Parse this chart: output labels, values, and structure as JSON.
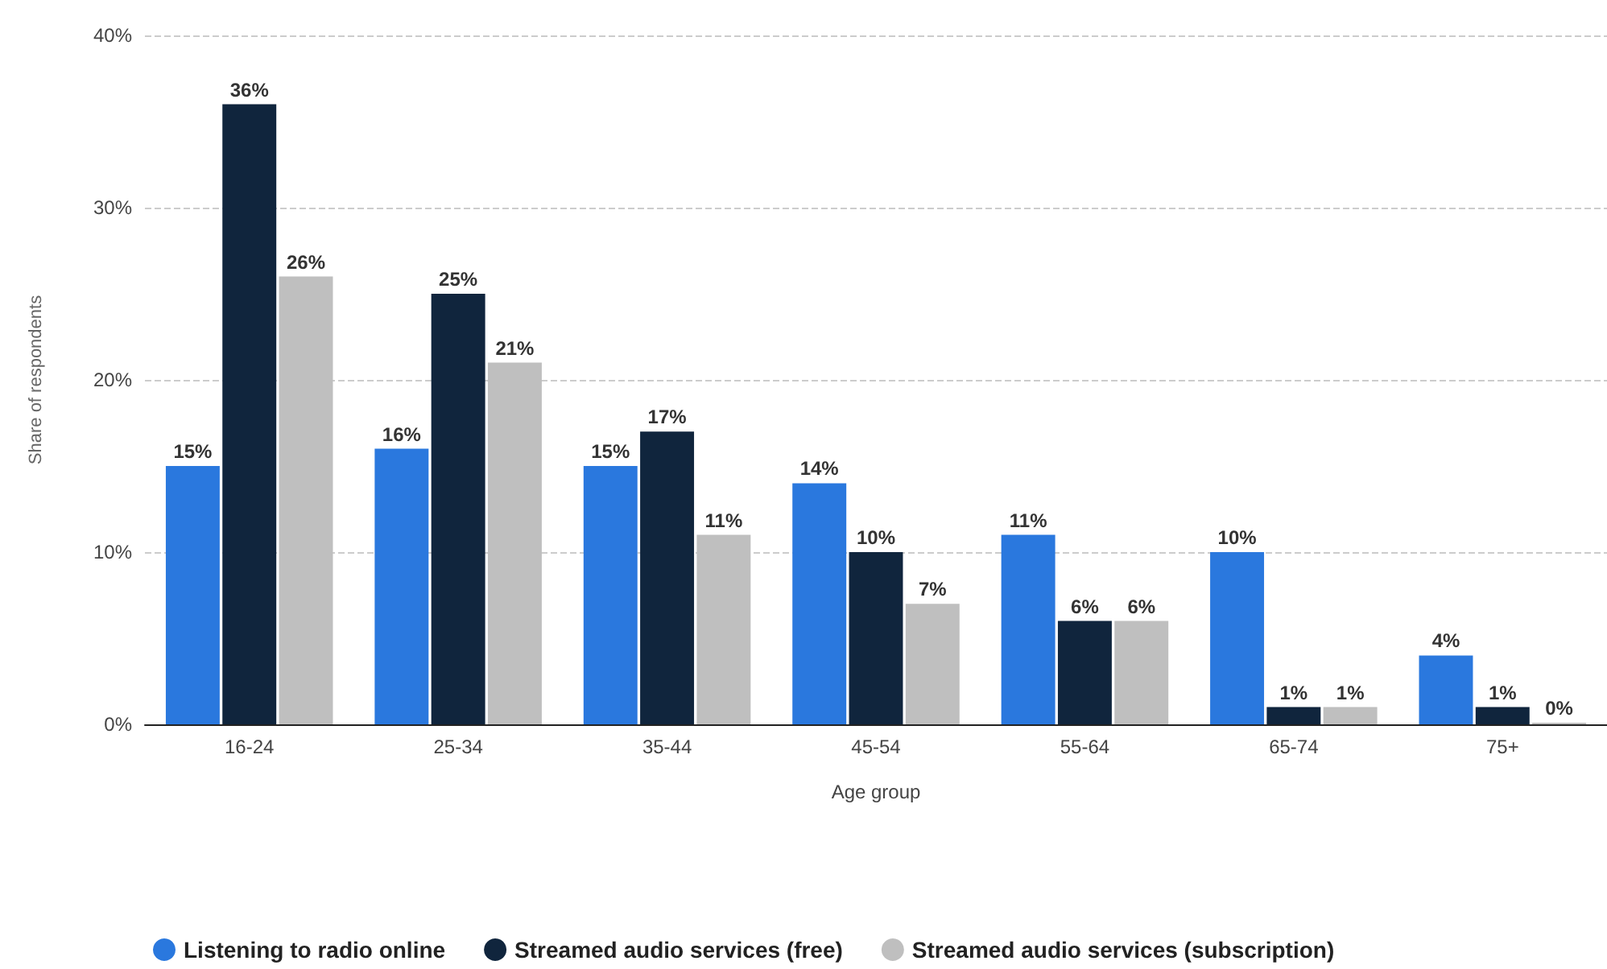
{
  "chart_data": {
    "type": "bar",
    "xlabel": "Age group",
    "ylabel": "Share of respondents",
    "categories": [
      "16-24",
      "25-34",
      "35-44",
      "45-54",
      "55-64",
      "65-74",
      "75+"
    ],
    "series": [
      {
        "name": "Listening to radio online",
        "color": "#2a78de",
        "values": [
          15,
          16,
          15,
          14,
          11,
          10,
          4
        ],
        "value_labels": [
          "15%",
          "16%",
          "15%",
          "14%",
          "11%",
          "10%",
          "4%"
        ]
      },
      {
        "name": "Streamed audio services (free)",
        "color": "#10253d",
        "values": [
          36,
          25,
          17,
          10,
          6,
          1,
          1
        ],
        "value_labels": [
          "36%",
          "25%",
          "17%",
          "10%",
          "6%",
          "1%",
          "1%"
        ]
      },
      {
        "name": "Streamed audio services (subscription)",
        "color": "#bfbfbf",
        "values": [
          26,
          21,
          11,
          7,
          6,
          1,
          0
        ],
        "value_labels": [
          "26%",
          "21%",
          "11%",
          "7%",
          "6%",
          "1%",
          "0%"
        ]
      }
    ],
    "ylim": [
      0,
      40
    ],
    "yticks": [
      {
        "value": 0,
        "label": "0%"
      },
      {
        "value": 10,
        "label": "10%"
      },
      {
        "value": 20,
        "label": "20%"
      },
      {
        "value": 30,
        "label": "30%"
      },
      {
        "value": 40,
        "label": "40%"
      }
    ],
    "grid": "y",
    "legend": "bottom"
  }
}
